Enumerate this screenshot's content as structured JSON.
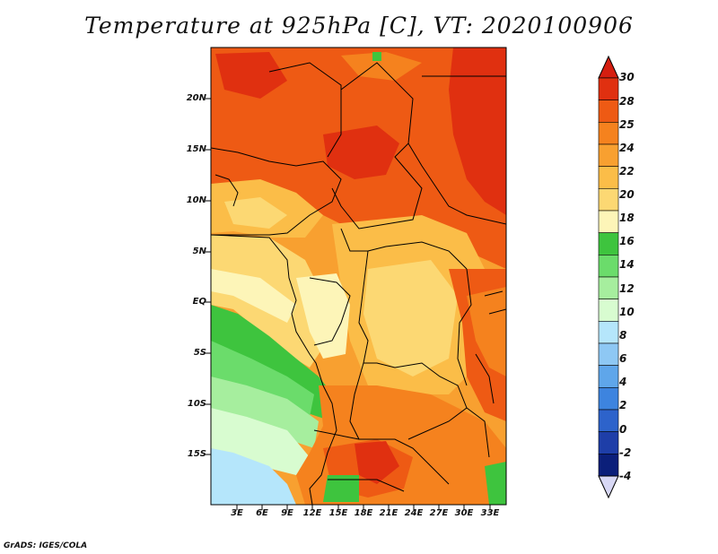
{
  "title": "Temperature at 925hPa [C], VT: 2020100906",
  "credit": "GrADS: IGES/COLA",
  "map": {
    "variable": "Temperature",
    "level": "925hPa",
    "units": "C",
    "valid_time": "2020100906",
    "lon_range": [
      0,
      35
    ],
    "lat_range": [
      -19,
      25
    ],
    "lat_ticks": [
      "20N",
      "15N",
      "10N",
      "5N",
      "EQ",
      "5S",
      "10S",
      "15S"
    ],
    "lon_ticks": [
      "3E",
      "6E",
      "9E",
      "12E",
      "15E",
      "18E",
      "21E",
      "24E",
      "27E",
      "30E",
      "33E"
    ]
  },
  "colorbar": {
    "levels": [
      "30",
      "28",
      "25",
      "24",
      "22",
      "20",
      "18",
      "16",
      "14",
      "12",
      "10",
      "8",
      "6",
      "4",
      "2",
      "0",
      "-2",
      "-4"
    ],
    "colors": [
      "#e03010",
      "#ee5a14",
      "#f5821e",
      "#f8a030",
      "#fbbd48",
      "#fcd873",
      "#fdf5b8",
      "#3ec43e",
      "#6bdc6b",
      "#a6ee9e",
      "#d8fcd0",
      "#b5e6fb",
      "#8ec8f4",
      "#5fa6ea",
      "#3d84df",
      "#2d63cb",
      "#1e3ea8",
      "#0b1f7a"
    ],
    "top_color": "#d51e10",
    "bottom_color": "#d8d8f5"
  }
}
